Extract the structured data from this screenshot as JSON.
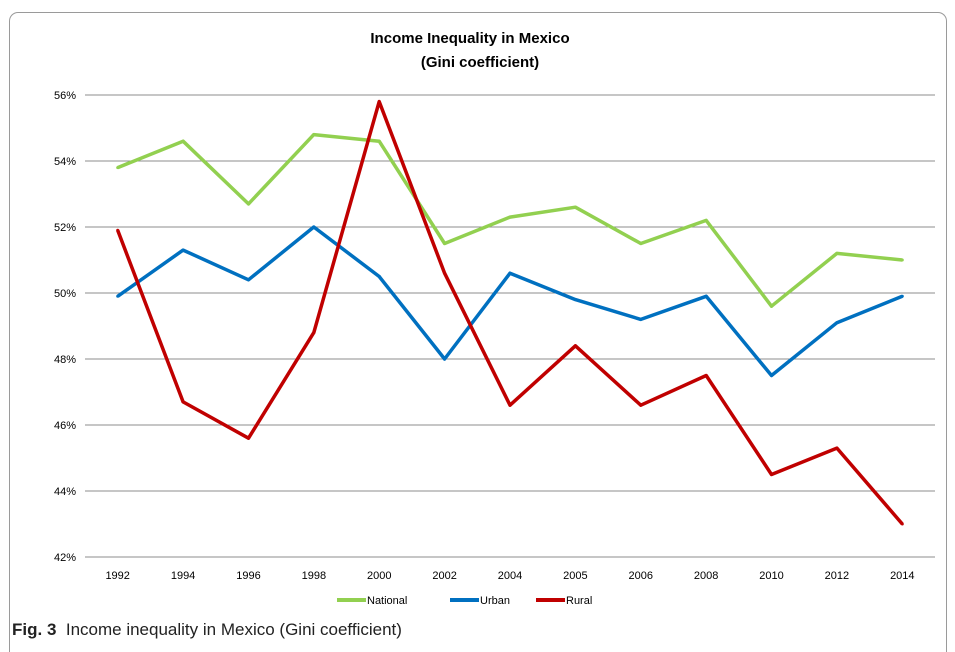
{
  "chart_data": {
    "type": "line",
    "title": "Income Inequality in Mexico",
    "subtitle": "(Gini coefficient)",
    "categories": [
      "1992",
      "1994",
      "1996",
      "1998",
      "2000",
      "2002",
      "2004",
      "2005",
      "2006",
      "2008",
      "2010",
      "2012",
      "2014"
    ],
    "series": [
      {
        "name": "National",
        "color": "#92d050",
        "values": [
          53.8,
          54.6,
          52.7,
          54.8,
          54.6,
          51.5,
          52.3,
          52.6,
          51.5,
          52.2,
          49.6,
          51.2,
          51.0
        ]
      },
      {
        "name": "Urban",
        "color": "#0070c0",
        "values": [
          49.9,
          51.3,
          50.4,
          52.0,
          50.5,
          48.0,
          50.6,
          49.8,
          49.2,
          49.9,
          47.5,
          49.1,
          49.9
        ]
      },
      {
        "name": "Rural",
        "color": "#c00000",
        "values": [
          51.9,
          46.7,
          45.6,
          48.8,
          55.8,
          50.6,
          46.6,
          48.4,
          46.6,
          47.5,
          44.5,
          45.3,
          43.0
        ]
      }
    ],
    "ylim": [
      42,
      56
    ],
    "yticks": [
      "42%",
      "44%",
      "46%",
      "48%",
      "50%",
      "52%",
      "54%",
      "56%"
    ],
    "grid": true,
    "legend_position": "bottom"
  },
  "caption": {
    "label": "Fig. 3",
    "text": "Income inequality in Mexico (Gini coefficient)"
  }
}
